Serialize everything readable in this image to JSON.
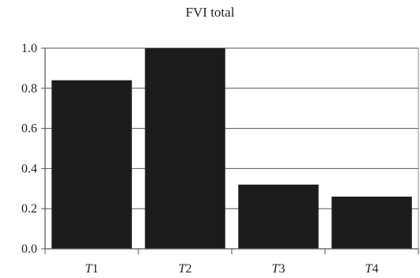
{
  "chart_data": {
    "type": "bar",
    "title": "FVI total",
    "xlabel": "",
    "ylabel": "",
    "categories": [
      {
        "letter": "T",
        "number": "1"
      },
      {
        "letter": "T",
        "number": "2"
      },
      {
        "letter": "T",
        "number": "3"
      },
      {
        "letter": "T",
        "number": "4"
      }
    ],
    "values": [
      0.84,
      1.0,
      0.32,
      0.26
    ],
    "ylim": [
      0,
      1.0
    ],
    "yticks": [
      "0.0",
      "0.2",
      "0.4",
      "0.6",
      "0.8",
      "1.0"
    ],
    "grid": true,
    "colors": {
      "bar": "#1c1c1c",
      "grid": "#555555",
      "axis": "#555555",
      "frame": "#8a8a8a"
    }
  }
}
